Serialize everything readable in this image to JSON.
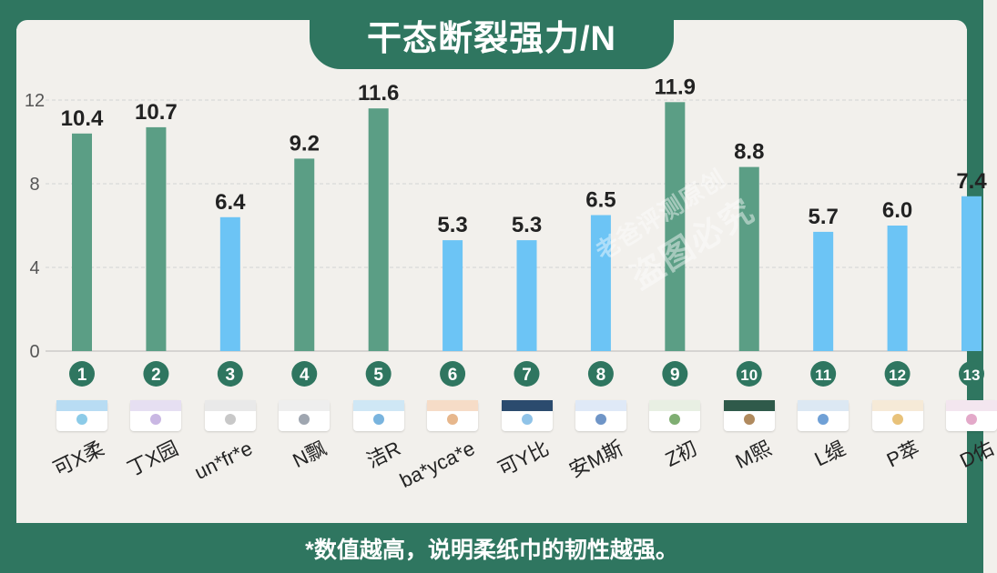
{
  "title": "干态断裂强力/N",
  "footer_note": "*数值越高，说明柔纸巾的韧性越强。",
  "watermark": {
    "line1": "老爸评测原创",
    "line2": "盗图必究"
  },
  "colors": {
    "frame": "#2f7660",
    "bar_green": "#5b9e85",
    "bar_blue": "#6cc4f5",
    "background": "#f2f0ec",
    "badge": "#2f7660"
  },
  "chart_data": {
    "type": "bar",
    "categories": [
      "可X柔",
      "丁X园",
      "un*fr*e",
      "N飘",
      "洁R",
      "ba*yca*e",
      "可Y比",
      "安M斯",
      "Z初",
      "M熙",
      "L缇",
      "P萃",
      "D佑"
    ],
    "numbers": [
      "1",
      "2",
      "3",
      "4",
      "5",
      "6",
      "7",
      "8",
      "9",
      "10",
      "11",
      "12",
      "13"
    ],
    "values": [
      10.4,
      10.7,
      6.4,
      9.2,
      11.6,
      5.3,
      5.3,
      6.5,
      11.9,
      8.8,
      5.7,
      6.0,
      7.4
    ],
    "value_labels": [
      "10.4",
      "10.7",
      "6.4",
      "9.2",
      "11.6",
      "5.3",
      "5.3",
      "6.5",
      "11.9",
      "8.8",
      "5.7",
      "6.0",
      "7.4"
    ],
    "bar_colors": [
      "green",
      "green",
      "blue",
      "green",
      "green",
      "blue",
      "blue",
      "blue",
      "green",
      "green",
      "blue",
      "blue",
      "blue"
    ],
    "yticks": [
      0,
      4,
      8,
      12
    ],
    "ylim": [
      0,
      12
    ],
    "grid": true,
    "title": "干态断裂强力/N"
  },
  "product_thumbs": [
    "product-1",
    "product-2",
    "product-3",
    "product-4",
    "product-5",
    "product-6",
    "product-7",
    "product-8",
    "product-9",
    "product-10",
    "product-11",
    "product-12",
    "product-13"
  ]
}
